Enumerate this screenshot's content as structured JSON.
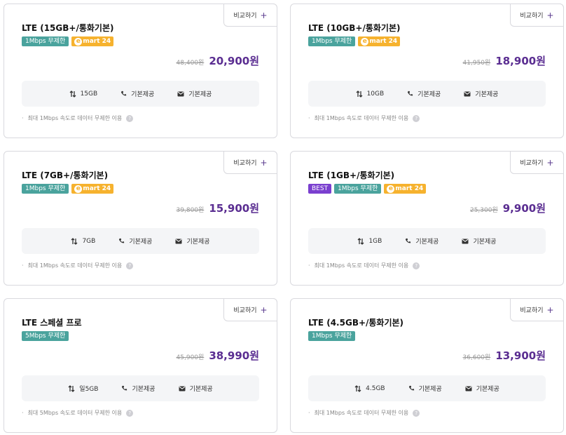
{
  "compare_label": "비교하기",
  "plans": [
    {
      "title": "LTE (15GB+/통화기본)",
      "badges": [
        "1Mbps 무제한"
      ],
      "emart": "mart 24",
      "old_price": "48,400원",
      "price": "20,900원",
      "data": "15GB",
      "call": "기본제공",
      "sms": "기본제공",
      "note": "최대 1Mbps 속도로 데이터 무제한 이용"
    },
    {
      "title": "LTE (10GB+/통화기본)",
      "badges": [
        "1Mbps 무제한"
      ],
      "emart": "mart 24",
      "old_price": "41,950원",
      "price": "18,900원",
      "data": "10GB",
      "call": "기본제공",
      "sms": "기본제공",
      "note": "최대 1Mbps 속도로 데이터 무제한 이용"
    },
    {
      "title": "LTE (7GB+/통화기본)",
      "badges": [
        "1Mbps 무제한"
      ],
      "emart": "mart 24",
      "old_price": "39,800원",
      "price": "15,900원",
      "data": "7GB",
      "call": "기본제공",
      "sms": "기본제공",
      "note": "최대 1Mbps 속도로 데이터 무제한 이용"
    },
    {
      "title": "LTE (1GB+/통화기본)",
      "best": "BEST",
      "badges": [
        "1Mbps 무제한"
      ],
      "emart": "mart 24",
      "old_price": "25,300원",
      "price": "9,900원",
      "data": "1GB",
      "call": "기본제공",
      "sms": "기본제공",
      "note": "최대 1Mbps 속도로 데이터 무제한 이용"
    },
    {
      "title": "LTE 스페셜 프로",
      "badges": [
        "5Mbps 무제한"
      ],
      "old_price": "45,900원",
      "price": "38,990원",
      "data": "일5GB",
      "call": "기본제공",
      "sms": "기본제공",
      "note": "최대 5Mbps 속도로 데이터 무제한 이용"
    },
    {
      "title": "LTE (4.5GB+/통화기본)",
      "badges": [
        "1Mbps 무제한"
      ],
      "old_price": "36,600원",
      "price": "13,900원",
      "data": "4.5GB",
      "call": "기본제공",
      "sms": "기본제공",
      "note": "최대 1Mbps 속도로 데이터 무제한 이용"
    }
  ],
  "colors": {
    "price": "#5a2d91",
    "badge_teal": "#4aa39d",
    "badge_best": "#7a3fcf",
    "badge_emart": "#f6b22e"
  },
  "icons": {
    "data": "data-arrows-icon",
    "call": "phone-icon",
    "sms": "message-icon",
    "help": "question-icon",
    "compare": "plus-icon"
  }
}
